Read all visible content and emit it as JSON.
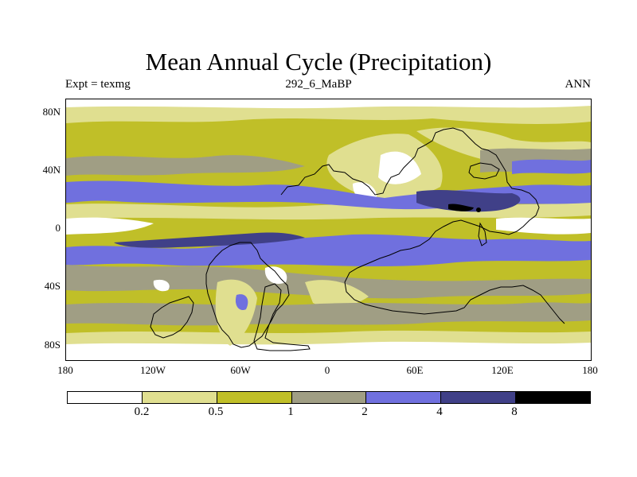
{
  "title": "Mean Annual Cycle (Precipitation)",
  "experiment_label": "Expt = texmg",
  "period_label": "292_6_MaBP",
  "season_label": "ANN",
  "y_ticks": [
    "80N",
    "40N",
    "0",
    "40S",
    "80S"
  ],
  "x_ticks": [
    "180",
    "120W",
    "60W",
    "0",
    "60E",
    "120E",
    "180"
  ],
  "colors": {
    "c0": "#ffffff",
    "c1": "#e0df90",
    "c2": "#c0bf28",
    "c3": "#a09e84",
    "c4": "#7070de",
    "c5": "#404088",
    "c6": "#000000"
  },
  "legend": {
    "bins": [
      "c0",
      "c1",
      "c2",
      "c3",
      "c4",
      "c5",
      "c6"
    ],
    "labels": [
      "0.2",
      "0.5",
      "1",
      "2",
      "4",
      "8"
    ]
  }
}
